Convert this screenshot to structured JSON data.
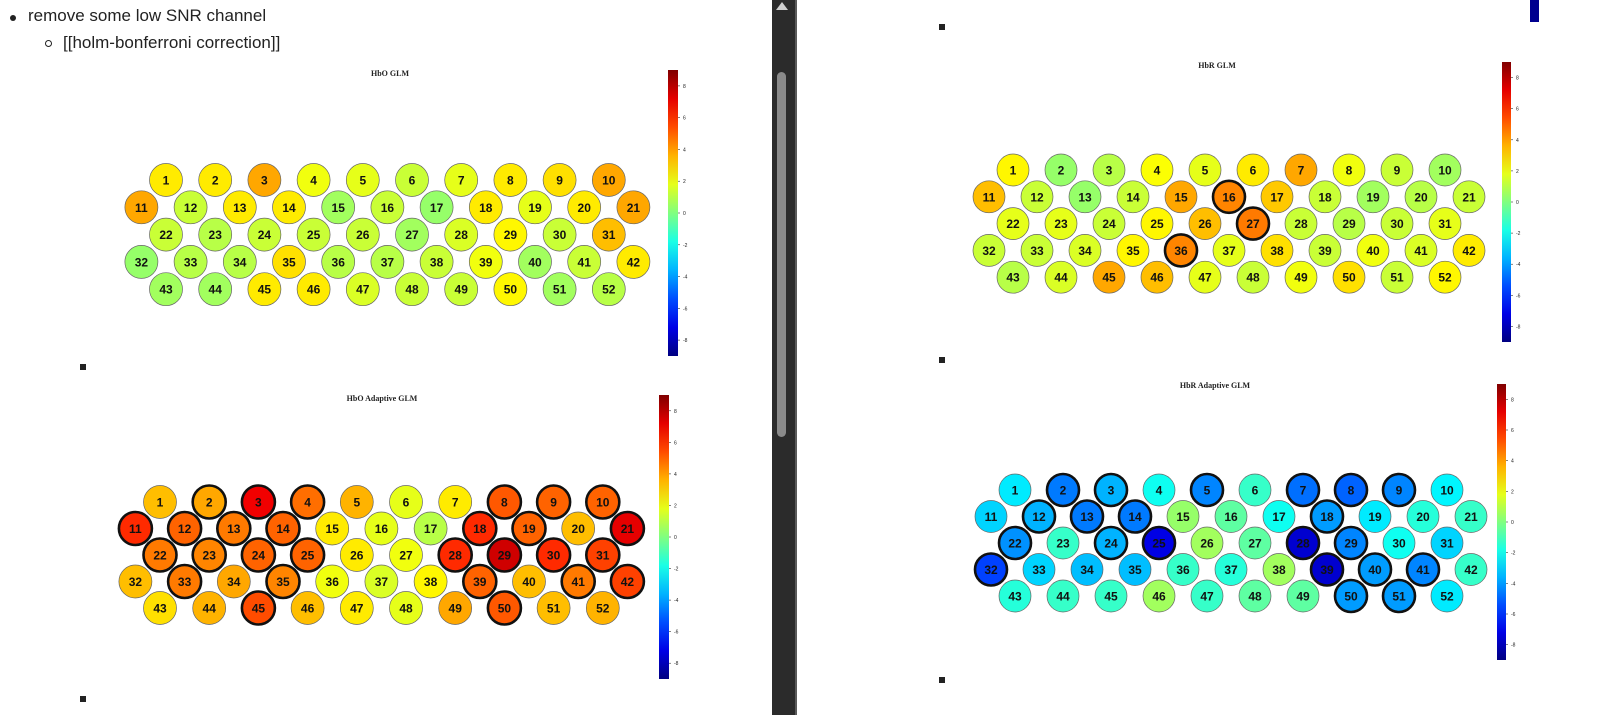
{
  "notes": {
    "bullet_text": "remove some low SNR channel",
    "sub_bullet_text": "[[holm-bonferroni correction]]"
  },
  "colorbar": {
    "ticks": [
      "8",
      "6",
      "4",
      "2",
      "0",
      "-2",
      "-4",
      "-6",
      "-8"
    ],
    "range": [
      -9,
      9
    ],
    "colormap": "jet"
  },
  "chart_data": [
    {
      "type": "heatmap",
      "title": "HbO GLM",
      "channels": [
        {
          "n": 1,
          "v": 2.6
        },
        {
          "n": 2,
          "v": 2.6
        },
        {
          "n": 3,
          "v": 3.8
        },
        {
          "n": 4,
          "v": 2.0
        },
        {
          "n": 5,
          "v": 1.8
        },
        {
          "n": 6,
          "v": 1.3
        },
        {
          "n": 7,
          "v": 1.8
        },
        {
          "n": 8,
          "v": 2.6
        },
        {
          "n": 9,
          "v": 2.8
        },
        {
          "n": 10,
          "v": 3.8
        },
        {
          "n": 11,
          "v": 3.8
        },
        {
          "n": 12,
          "v": 1.3
        },
        {
          "n": 13,
          "v": 2.6
        },
        {
          "n": 14,
          "v": 2.6
        },
        {
          "n": 15,
          "v": 0.6
        },
        {
          "n": 16,
          "v": 1.3
        },
        {
          "n": 17,
          "v": 0.4
        },
        {
          "n": 18,
          "v": 2.6
        },
        {
          "n": 19,
          "v": 1.8
        },
        {
          "n": 20,
          "v": 2.6
        },
        {
          "n": 21,
          "v": 3.8
        },
        {
          "n": 22,
          "v": 1.3
        },
        {
          "n": 23,
          "v": 1.0
        },
        {
          "n": 24,
          "v": 1.3
        },
        {
          "n": 25,
          "v": 1.3
        },
        {
          "n": 26,
          "v": 1.3
        },
        {
          "n": 27,
          "v": 0.6
        },
        {
          "n": 28,
          "v": 1.6
        },
        {
          "n": 29,
          "v": 2.4
        },
        {
          "n": 30,
          "v": 1.3
        },
        {
          "n": 31,
          "v": 3.4
        },
        {
          "n": 32,
          "v": 0.4
        },
        {
          "n": 33,
          "v": 1.0
        },
        {
          "n": 34,
          "v": 1.0
        },
        {
          "n": 35,
          "v": 2.8
        },
        {
          "n": 36,
          "v": 1.0
        },
        {
          "n": 37,
          "v": 1.0
        },
        {
          "n": 38,
          "v": 1.3
        },
        {
          "n": 39,
          "v": 2.0
        },
        {
          "n": 40,
          "v": 0.6
        },
        {
          "n": 41,
          "v": 1.3
        },
        {
          "n": 42,
          "v": 2.6
        },
        {
          "n": 43,
          "v": 0.6
        },
        {
          "n": 44,
          "v": 0.6
        },
        {
          "n": 45,
          "v": 2.6
        },
        {
          "n": 46,
          "v": 2.6
        },
        {
          "n": 47,
          "v": 1.6
        },
        {
          "n": 48,
          "v": 1.3
        },
        {
          "n": 49,
          "v": 1.3
        },
        {
          "n": 50,
          "v": 2.4
        },
        {
          "n": 51,
          "v": 0.6
        },
        {
          "n": 52,
          "v": 1.0
        }
      ],
      "significant": []
    },
    {
      "type": "heatmap",
      "title": "HbO Adaptive GLM",
      "channels": [
        {
          "n": 1,
          "v": 3.4
        },
        {
          "n": 2,
          "v": 3.8
        },
        {
          "n": 3,
          "v": 7.0
        },
        {
          "n": 4,
          "v": 4.8
        },
        {
          "n": 5,
          "v": 3.6
        },
        {
          "n": 6,
          "v": 1.8
        },
        {
          "n": 7,
          "v": 2.6
        },
        {
          "n": 8,
          "v": 5.2
        },
        {
          "n": 9,
          "v": 5.0
        },
        {
          "n": 10,
          "v": 5.0
        },
        {
          "n": 11,
          "v": 6.0
        },
        {
          "n": 12,
          "v": 5.0
        },
        {
          "n": 13,
          "v": 4.6
        },
        {
          "n": 14,
          "v": 5.0
        },
        {
          "n": 15,
          "v": 2.6
        },
        {
          "n": 16,
          "v": 1.8
        },
        {
          "n": 17,
          "v": 1.0
        },
        {
          "n": 18,
          "v": 6.0
        },
        {
          "n": 19,
          "v": 5.0
        },
        {
          "n": 20,
          "v": 3.4
        },
        {
          "n": 21,
          "v": 7.2
        },
        {
          "n": 22,
          "v": 4.6
        },
        {
          "n": 23,
          "v": 4.4
        },
        {
          "n": 24,
          "v": 5.0
        },
        {
          "n": 25,
          "v": 5.0
        },
        {
          "n": 26,
          "v": 2.6
        },
        {
          "n": 27,
          "v": 2.0
        },
        {
          "n": 28,
          "v": 6.0
        },
        {
          "n": 29,
          "v": 7.6
        },
        {
          "n": 30,
          "v": 6.0
        },
        {
          "n": 31,
          "v": 5.6
        },
        {
          "n": 32,
          "v": 3.4
        },
        {
          "n": 33,
          "v": 4.6
        },
        {
          "n": 34,
          "v": 3.8
        },
        {
          "n": 35,
          "v": 4.4
        },
        {
          "n": 36,
          "v": 2.0
        },
        {
          "n": 37,
          "v": 1.6
        },
        {
          "n": 38,
          "v": 2.4
        },
        {
          "n": 39,
          "v": 5.0
        },
        {
          "n": 40,
          "v": 3.4
        },
        {
          "n": 41,
          "v": 4.6
        },
        {
          "n": 42,
          "v": 5.6
        },
        {
          "n": 43,
          "v": 2.8
        },
        {
          "n": 44,
          "v": 3.6
        },
        {
          "n": 45,
          "v": 5.4
        },
        {
          "n": 46,
          "v": 3.4
        },
        {
          "n": 47,
          "v": 2.6
        },
        {
          "n": 48,
          "v": 1.8
        },
        {
          "n": 49,
          "v": 3.8
        },
        {
          "n": 50,
          "v": 5.2
        },
        {
          "n": 51,
          "v": 3.4
        },
        {
          "n": 52,
          "v": 3.6
        }
      ],
      "significant": [
        2,
        3,
        4,
        8,
        9,
        10,
        11,
        12,
        13,
        14,
        18,
        19,
        21,
        22,
        23,
        24,
        25,
        28,
        29,
        30,
        31,
        33,
        35,
        39,
        41,
        42,
        45,
        50
      ]
    },
    {
      "type": "heatmap",
      "title": "HbR GLM",
      "channels": [
        {
          "n": 1,
          "v": 2.4
        },
        {
          "n": 2,
          "v": 0.4
        },
        {
          "n": 3,
          "v": 1.0
        },
        {
          "n": 4,
          "v": 2.2
        },
        {
          "n": 5,
          "v": 1.8
        },
        {
          "n": 6,
          "v": 2.6
        },
        {
          "n": 7,
          "v": 3.8
        },
        {
          "n": 8,
          "v": 2.0
        },
        {
          "n": 9,
          "v": 1.3
        },
        {
          "n": 10,
          "v": 0.6
        },
        {
          "n": 11,
          "v": 3.4
        },
        {
          "n": 12,
          "v": 1.3
        },
        {
          "n": 13,
          "v": 0.4
        },
        {
          "n": 14,
          "v": 1.3
        },
        {
          "n": 15,
          "v": 3.8
        },
        {
          "n": 16,
          "v": 4.4
        },
        {
          "n": 17,
          "v": 3.2
        },
        {
          "n": 18,
          "v": 1.3
        },
        {
          "n": 19,
          "v": 0.6
        },
        {
          "n": 20,
          "v": 1.0
        },
        {
          "n": 21,
          "v": 1.3
        },
        {
          "n": 22,
          "v": 1.8
        },
        {
          "n": 23,
          "v": 1.8
        },
        {
          "n": 24,
          "v": 1.3
        },
        {
          "n": 25,
          "v": 2.4
        },
        {
          "n": 26,
          "v": 3.4
        },
        {
          "n": 27,
          "v": 4.6
        },
        {
          "n": 28,
          "v": 1.3
        },
        {
          "n": 29,
          "v": 1.0
        },
        {
          "n": 30,
          "v": 1.3
        },
        {
          "n": 31,
          "v": 1.8
        },
        {
          "n": 32,
          "v": 1.3
        },
        {
          "n": 33,
          "v": 1.3
        },
        {
          "n": 34,
          "v": 1.6
        },
        {
          "n": 35,
          "v": 2.4
        },
        {
          "n": 36,
          "v": 4.4
        },
        {
          "n": 37,
          "v": 1.8
        },
        {
          "n": 38,
          "v": 2.8
        },
        {
          "n": 39,
          "v": 1.3
        },
        {
          "n": 40,
          "v": 2.0
        },
        {
          "n": 41,
          "v": 1.6
        },
        {
          "n": 42,
          "v": 2.6
        },
        {
          "n": 43,
          "v": 1.0
        },
        {
          "n": 44,
          "v": 1.6
        },
        {
          "n": 45,
          "v": 3.8
        },
        {
          "n": 46,
          "v": 3.4
        },
        {
          "n": 47,
          "v": 1.8
        },
        {
          "n": 48,
          "v": 1.3
        },
        {
          "n": 49,
          "v": 2.0
        },
        {
          "n": 50,
          "v": 2.8
        },
        {
          "n": 51,
          "v": 1.3
        },
        {
          "n": 52,
          "v": 2.4
        }
      ],
      "significant": [
        16,
        27,
        36
      ]
    },
    {
      "type": "heatmap",
      "title": "HbR Adaptive GLM",
      "channels": [
        {
          "n": 1,
          "v": -2.6
        },
        {
          "n": 2,
          "v": -4.6
        },
        {
          "n": 3,
          "v": -3.6
        },
        {
          "n": 4,
          "v": -2.0
        },
        {
          "n": 5,
          "v": -4.4
        },
        {
          "n": 6,
          "v": -1.3
        },
        {
          "n": 7,
          "v": -4.8
        },
        {
          "n": 8,
          "v": -5.0
        },
        {
          "n": 9,
          "v": -4.4
        },
        {
          "n": 10,
          "v": -2.4
        },
        {
          "n": 11,
          "v": -3.0
        },
        {
          "n": 12,
          "v": -3.6
        },
        {
          "n": 13,
          "v": -4.6
        },
        {
          "n": 14,
          "v": -4.6
        },
        {
          "n": 15,
          "v": 0.4
        },
        {
          "n": 16,
          "v": -0.6
        },
        {
          "n": 17,
          "v": -2.0
        },
        {
          "n": 18,
          "v": -4.0
        },
        {
          "n": 19,
          "v": -2.6
        },
        {
          "n": 20,
          "v": -1.6
        },
        {
          "n": 21,
          "v": -1.3
        },
        {
          "n": 22,
          "v": -4.2
        },
        {
          "n": 23,
          "v": -1.3
        },
        {
          "n": 24,
          "v": -3.6
        },
        {
          "n": 25,
          "v": -7.2
        },
        {
          "n": 26,
          "v": 0.6
        },
        {
          "n": 27,
          "v": -0.6
        },
        {
          "n": 28,
          "v": -7.6
        },
        {
          "n": 29,
          "v": -4.4
        },
        {
          "n": 30,
          "v": -2.0
        },
        {
          "n": 31,
          "v": -3.0
        },
        {
          "n": 32,
          "v": -5.6
        },
        {
          "n": 33,
          "v": -3.0
        },
        {
          "n": 34,
          "v": -3.4
        },
        {
          "n": 35,
          "v": -3.4
        },
        {
          "n": 36,
          "v": -1.3
        },
        {
          "n": 37,
          "v": -1.6
        },
        {
          "n": 38,
          "v": 0.6
        },
        {
          "n": 39,
          "v": -7.6
        },
        {
          "n": 40,
          "v": -4.0
        },
        {
          "n": 41,
          "v": -4.4
        },
        {
          "n": 42,
          "v": -1.3
        },
        {
          "n": 43,
          "v": -1.6
        },
        {
          "n": 44,
          "v": -1.3
        },
        {
          "n": 45,
          "v": -1.3
        },
        {
          "n": 46,
          "v": 0.6
        },
        {
          "n": 47,
          "v": -1.3
        },
        {
          "n": 48,
          "v": -0.6
        },
        {
          "n": 49,
          "v": -0.6
        },
        {
          "n": 50,
          "v": -4.0
        },
        {
          "n": 51,
          "v": -4.0
        },
        {
          "n": 52,
          "v": -2.6
        }
      ],
      "significant": [
        2,
        3,
        5,
        7,
        8,
        9,
        12,
        13,
        14,
        18,
        22,
        24,
        25,
        28,
        29,
        32,
        39,
        40,
        41,
        50,
        51
      ]
    }
  ]
}
